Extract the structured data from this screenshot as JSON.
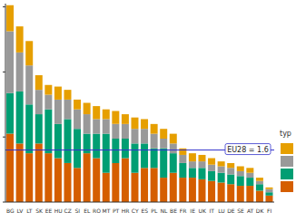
{
  "chart_data": {
    "type": "bar",
    "stacked": true,
    "grid": false,
    "legend": "right",
    "legend_title": "typ",
    "tick_labels": "x",
    "categories": [
      "BG",
      "LV",
      "LT",
      "SK",
      "EE",
      "HU",
      "CZ",
      "SI",
      "EL",
      "RO",
      "MT",
      "PT",
      "HR",
      "CY",
      "ES",
      "PL",
      "NL",
      "BE",
      "FR",
      "IE",
      "UK",
      "IT",
      "LU",
      "DE",
      "SE",
      "AT",
      "DK",
      "FI"
    ],
    "series": [
      {
        "color": "#D55E00",
        "values": [
          2.1,
          1.8,
          1.5,
          1.8,
          1.5,
          1.35,
          1.2,
          1.05,
          1.5,
          1.35,
          0.9,
          1.2,
          1.35,
          0.9,
          1.05,
          1.05,
          0.75,
          0.9,
          0.75,
          0.75,
          0.7,
          0.65,
          0.6,
          0.55,
          0.5,
          0.5,
          0.35,
          0.2
        ]
      },
      {
        "color": "#009E73",
        "values": [
          1.25,
          1.6,
          1.5,
          0.9,
          1.35,
          1.05,
          1.35,
          1.2,
          0.6,
          0.75,
          1.2,
          0.75,
          0.6,
          0.9,
          0.75,
          0.6,
          0.9,
          0.6,
          0.45,
          0.3,
          0.35,
          0.3,
          0.3,
          0.3,
          0.3,
          0.25,
          0.2,
          0.1
        ]
      },
      {
        "color": "#999999",
        "values": [
          1.9,
          1.2,
          1.2,
          0.75,
          0.45,
          0.75,
          0.6,
          0.6,
          0.6,
          0.45,
          0.45,
          0.45,
          0.45,
          0.45,
          0.45,
          0.45,
          0.3,
          0.3,
          0.25,
          0.2,
          0.2,
          0.2,
          0.2,
          0.2,
          0.15,
          0.15,
          0.1,
          0.1
        ]
      },
      {
        "color": "#E69F00",
        "values": [
          0.8,
          0.8,
          0.75,
          0.45,
          0.3,
          0.4,
          0.3,
          0.3,
          0.35,
          0.4,
          0.3,
          0.4,
          0.3,
          0.35,
          0.3,
          0.3,
          0.3,
          0.3,
          0.2,
          0.25,
          0.2,
          0.2,
          0.15,
          0.15,
          0.15,
          0.15,
          0.1,
          0.05
        ]
      }
    ],
    "ylim": [
      0,
      6.1
    ],
    "yticks": [
      0,
      2,
      4,
      6
    ],
    "annotations": [
      {
        "value": 1.6,
        "label": "EU28 = 1.6",
        "color": "#3333CC"
      }
    ]
  }
}
